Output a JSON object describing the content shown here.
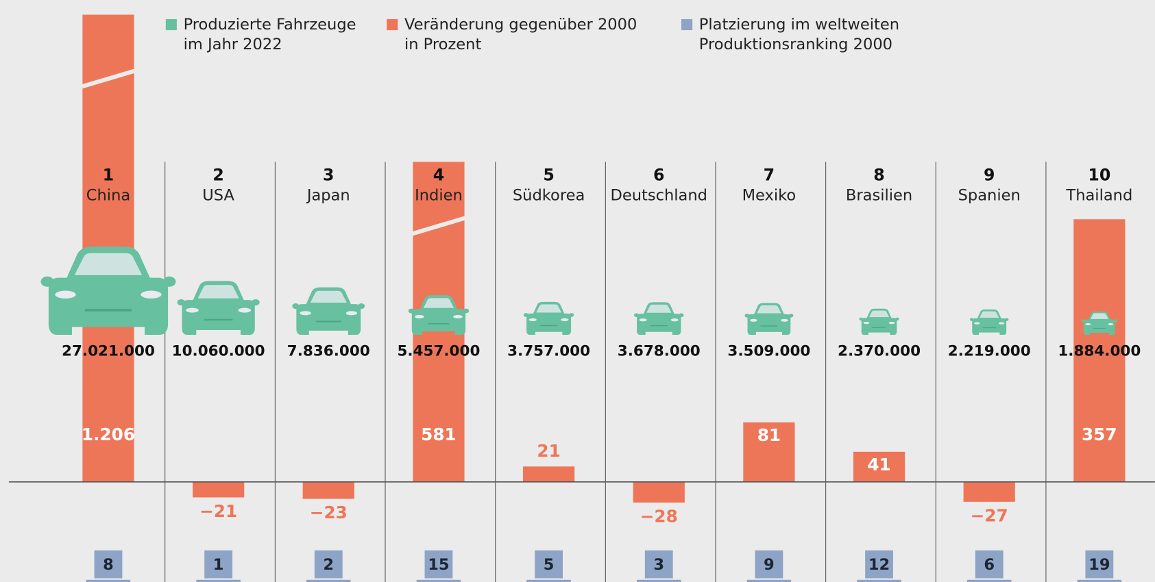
{
  "chart_data": {
    "type": "bar",
    "ranks": [
      1,
      2,
      3,
      4,
      5,
      6,
      7,
      8,
      9,
      10
    ],
    "categories": [
      "China",
      "USA",
      "Japan",
      "Indien",
      "Südkorea",
      "Deutschland",
      "Mexiko",
      "Brasilien",
      "Spanien",
      "Thailand"
    ],
    "series": [
      {
        "name": [
          "Produzierte Fahrzeuge",
          "im Jahr 2022"
        ],
        "color": "#67c0a0",
        "values": [
          27021000,
          10060000,
          7836000,
          5457000,
          3757000,
          3678000,
          3509000,
          2370000,
          2219000,
          1884000
        ],
        "value_labels": [
          "27.021.000",
          "10.060.000",
          "7.836.000",
          "5.457.000",
          "3.757.000",
          "3.678.000",
          "3.509.000",
          "2.370.000",
          "2.219.000",
          "1.884.000"
        ]
      },
      {
        "name": [
          "Veränderung gegenüber 2000",
          "in Prozent"
        ],
        "color": "#ee7658",
        "values": [
          1206,
          -21,
          -23,
          581,
          21,
          -28,
          81,
          41,
          -27,
          357
        ],
        "value_labels": [
          "1.206",
          "−21",
          "−23",
          "581",
          "21",
          "−28",
          "81",
          "41",
          "−27",
          "357"
        ]
      },
      {
        "name": [
          "Platzierung im weltweiten",
          "Produktionsranking 2000"
        ],
        "color": "#8ea4c6",
        "values": [
          8,
          1,
          2,
          15,
          5,
          3,
          9,
          12,
          6,
          19
        ]
      }
    ]
  }
}
